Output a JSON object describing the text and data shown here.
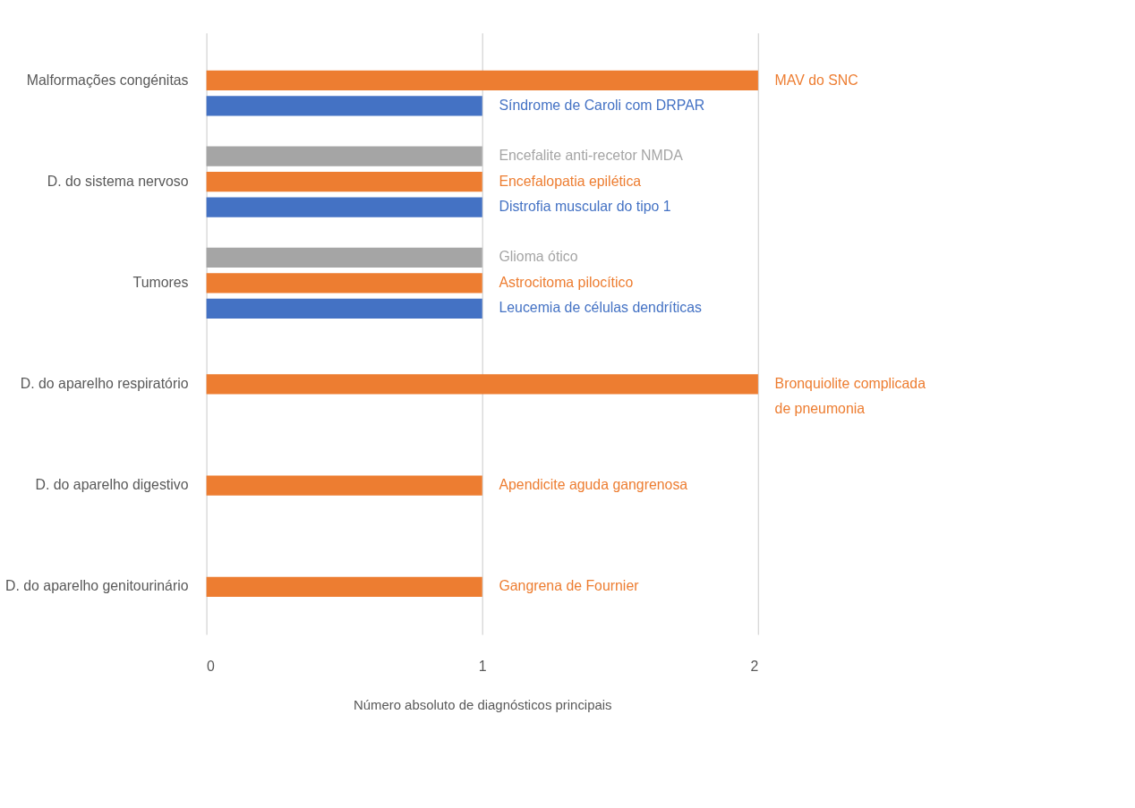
{
  "chart_data": {
    "type": "bar",
    "orientation": "horizontal",
    "xlabel": "Número absoluto de diagnósticos principais",
    "categories": [
      "Malformações congénitas",
      "D. do sistema nervoso",
      "Tumores",
      "D. do aparelho respiratório",
      "D. do aparelho digestivo",
      "D. do aparelho genitourinário"
    ],
    "series": [
      {
        "color": "#4472c4",
        "values": [
          1,
          1,
          1,
          null,
          null,
          null
        ],
        "value_labels": [
          "Síndrome de Caroli com DRPAR",
          "Distrofia muscular do tipo 1",
          "Leucemia de células dendríticas",
          null,
          null,
          null
        ]
      },
      {
        "color": "#ed7d31",
        "values": [
          2,
          1,
          1,
          2,
          1,
          1
        ],
        "value_labels": [
          "MAV do SNC",
          "Encefalopatia epilética",
          "Astrocitoma pilocítico",
          "Bronquiolite complicada\nde pneumonia",
          "Apendicite aguda gangrenosa",
          "Gangrena de Fournier"
        ]
      },
      {
        "color": "#a5a5a5",
        "values": [
          null,
          1,
          1,
          null,
          null,
          null
        ],
        "value_labels": [
          null,
          "Encefalite anti-recetor NMDA",
          "Glioma ótico",
          null,
          null,
          null
        ]
      }
    ],
    "xlim": [
      0,
      2
    ],
    "xticks": [
      0,
      1,
      2
    ],
    "grid": "x"
  }
}
